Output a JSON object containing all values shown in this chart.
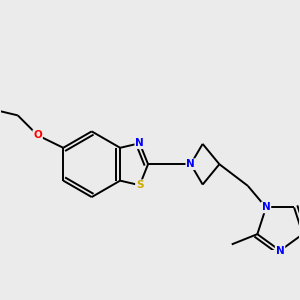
{
  "background_color": "#ebebeb",
  "bond_color": "#000000",
  "atom_colors": {
    "N": "#0000ff",
    "S": "#ccaa00",
    "O": "#ff0000",
    "C": "#000000"
  },
  "figsize": [
    3.0,
    3.0
  ],
  "dpi": 100,
  "lw": 1.4
}
